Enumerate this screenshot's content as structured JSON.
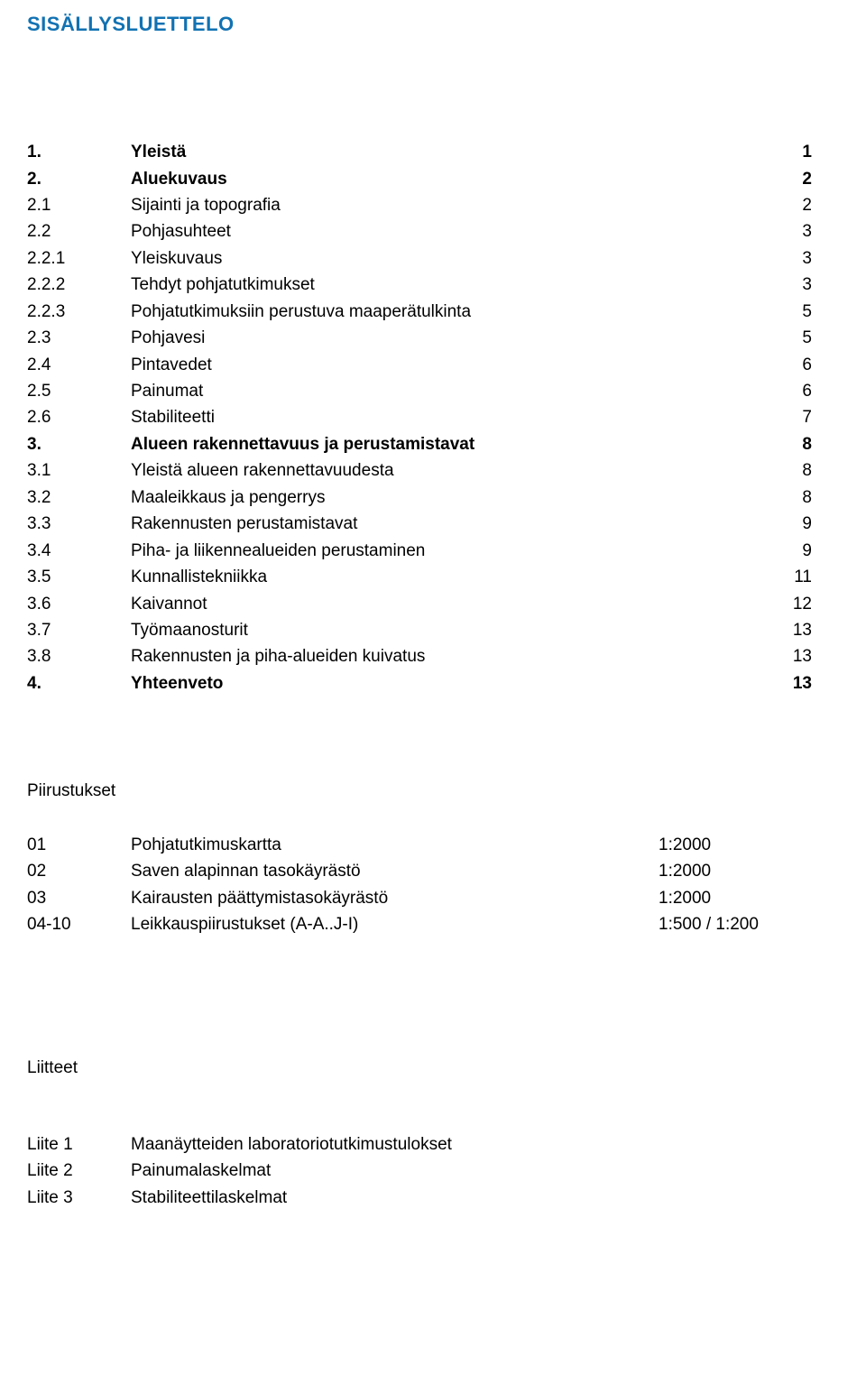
{
  "title": "SISÄLLYSLUETTELO",
  "title_color": "#1172b3",
  "body_color": "#000000",
  "background": "#ffffff",
  "font_size_body": 19,
  "font_size_title": 22,
  "toc": [
    {
      "num": "1.",
      "label": "Yleistä",
      "page": "1",
      "level": 1
    },
    {
      "num": "2.",
      "label": "Aluekuvaus",
      "page": "2",
      "level": 1
    },
    {
      "num": "2.1",
      "label": "Sijainti ja topografia",
      "page": "2",
      "level": 2
    },
    {
      "num": "2.2",
      "label": "Pohjasuhteet",
      "page": "3",
      "level": 2
    },
    {
      "num": "2.2.1",
      "label": "Yleiskuvaus",
      "page": "3",
      "level": 3
    },
    {
      "num": "2.2.2",
      "label": "Tehdyt pohjatutkimukset",
      "page": "3",
      "level": 3
    },
    {
      "num": "2.2.3",
      "label": "Pohjatutkimuksiin perustuva maaperätulkinta",
      "page": "5",
      "level": 3
    },
    {
      "num": "2.3",
      "label": "Pohjavesi",
      "page": "5",
      "level": 2
    },
    {
      "num": "2.4",
      "label": "Pintavedet",
      "page": "6",
      "level": 2
    },
    {
      "num": "2.5",
      "label": "Painumat",
      "page": "6",
      "level": 2
    },
    {
      "num": "2.6",
      "label": "Stabiliteetti",
      "page": "7",
      "level": 2
    },
    {
      "num": "3.",
      "label": "Alueen rakennettavuus ja perustamistavat",
      "page": "8",
      "level": 1
    },
    {
      "num": "3.1",
      "label": "Yleistä alueen rakennettavuudesta",
      "page": "8",
      "level": 2
    },
    {
      "num": "3.2",
      "label": "Maaleikkaus ja pengerrys",
      "page": "8",
      "level": 2
    },
    {
      "num": "3.3",
      "label": "Rakennusten perustamistavat",
      "page": "9",
      "level": 2
    },
    {
      "num": "3.4",
      "label": "Piha- ja liikennealueiden perustaminen",
      "page": "9",
      "level": 2
    },
    {
      "num": "3.5",
      "label": "Kunnallistekniikka",
      "page": "11",
      "level": 2
    },
    {
      "num": "3.6",
      "label": "Kaivannot",
      "page": "12",
      "level": 2
    },
    {
      "num": "3.7",
      "label": "Työmaanosturit",
      "page": "13",
      "level": 2
    },
    {
      "num": "3.8",
      "label": "Rakennusten ja piha-alueiden kuivatus",
      "page": "13",
      "level": 2
    },
    {
      "num": "4.",
      "label": "Yhteenveto",
      "page": "13",
      "level": 1
    }
  ],
  "drawings_heading": "Piirustukset",
  "drawings": [
    {
      "num": "01",
      "label": "Pohjatutkimuskartta",
      "scale": "1:2000"
    },
    {
      "num": "02",
      "label": "Saven alapinnan tasokäyrästö",
      "scale": "1:2000"
    },
    {
      "num": "03",
      "label": "Kairausten päättymistasokäyrästö",
      "scale": "1:2000"
    },
    {
      "num": "04-10",
      "label": "Leikkauspiirustukset (A-A..J-I)",
      "scale": "1:500 / 1:200"
    }
  ],
  "attachments_heading": "Liitteet",
  "attachments": [
    {
      "key": "Liite 1",
      "label": "Maanäytteiden laboratoriotutkimustulokset"
    },
    {
      "key": "Liite 2",
      "label": "Painumalaskelmat"
    },
    {
      "key": "Liite 3",
      "label": "Stabiliteettilaskelmat"
    }
  ]
}
